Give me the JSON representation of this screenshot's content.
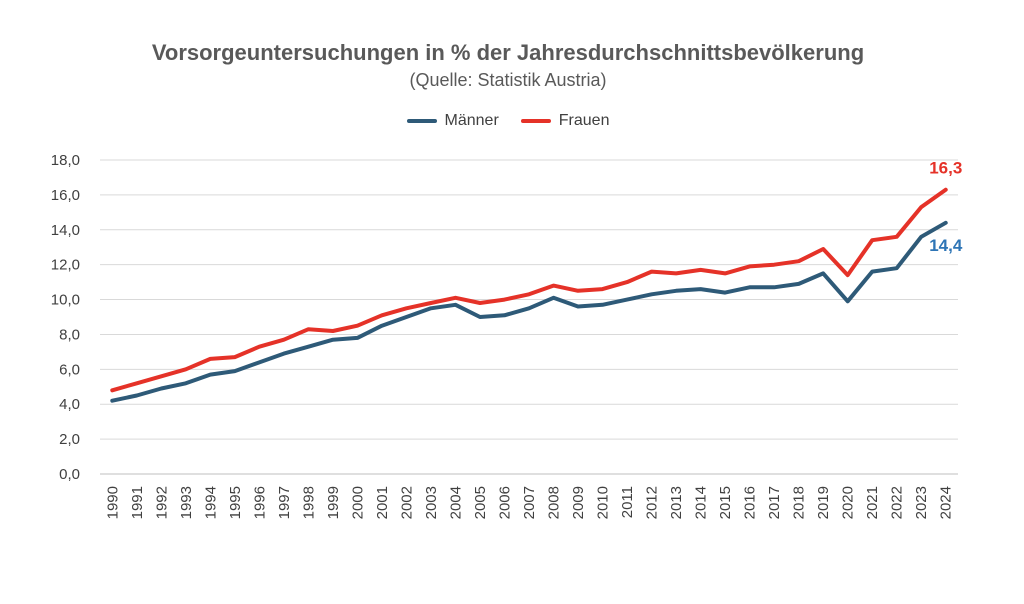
{
  "chart_data": {
    "type": "line",
    "title": "Vorsorgeuntersuchungen in % der Jahresdurchschnittsbevölkerung",
    "subtitle": "(Quelle: Statistik Austria)",
    "xlabel": "",
    "ylabel": "",
    "ylim": [
      0,
      18
    ],
    "yticks": [
      "0,0",
      "2,0",
      "4,0",
      "6,0",
      "8,0",
      "10,0",
      "12,0",
      "14,0",
      "16,0",
      "18,0"
    ],
    "grid": true,
    "legend_position": "top-center",
    "categories": [
      "1990",
      "1991",
      "1992",
      "1993",
      "1994",
      "1995",
      "1996",
      "1997",
      "1998",
      "1999",
      "2000",
      "2001",
      "2002",
      "2003",
      "2004",
      "2005",
      "2006",
      "2007",
      "2008",
      "2009",
      "2010",
      "2011",
      "2012",
      "2013",
      "2014",
      "2015",
      "2016",
      "2017",
      "2018",
      "2019",
      "2020",
      "2021",
      "2022",
      "2023",
      "2024"
    ],
    "series": [
      {
        "name": "Männer",
        "color": "#2e5a78",
        "values": [
          4.2,
          4.5,
          4.9,
          5.2,
          5.7,
          5.9,
          6.4,
          6.9,
          7.3,
          7.7,
          7.8,
          8.5,
          9.0,
          9.5,
          9.7,
          9.0,
          9.1,
          9.5,
          10.1,
          9.6,
          9.7,
          10.0,
          10.3,
          10.5,
          10.6,
          10.4,
          10.7,
          10.7,
          10.9,
          11.5,
          9.9,
          11.6,
          11.8,
          13.6,
          14.4
        ],
        "end_label": "14,4",
        "end_label_color": "#2e75b6"
      },
      {
        "name": "Frauen",
        "color": "#e53228",
        "values": [
          4.8,
          5.2,
          5.6,
          6.0,
          6.6,
          6.7,
          7.3,
          7.7,
          8.3,
          8.2,
          8.5,
          9.1,
          9.5,
          9.8,
          10.1,
          9.8,
          10.0,
          10.3,
          10.8,
          10.5,
          10.6,
          11.0,
          11.6,
          11.5,
          11.7,
          11.5,
          11.9,
          12.0,
          12.2,
          12.9,
          11.4,
          13.4,
          13.6,
          15.3,
          16.3
        ],
        "end_label": "16,3",
        "end_label_color": "#e53228"
      }
    ]
  }
}
